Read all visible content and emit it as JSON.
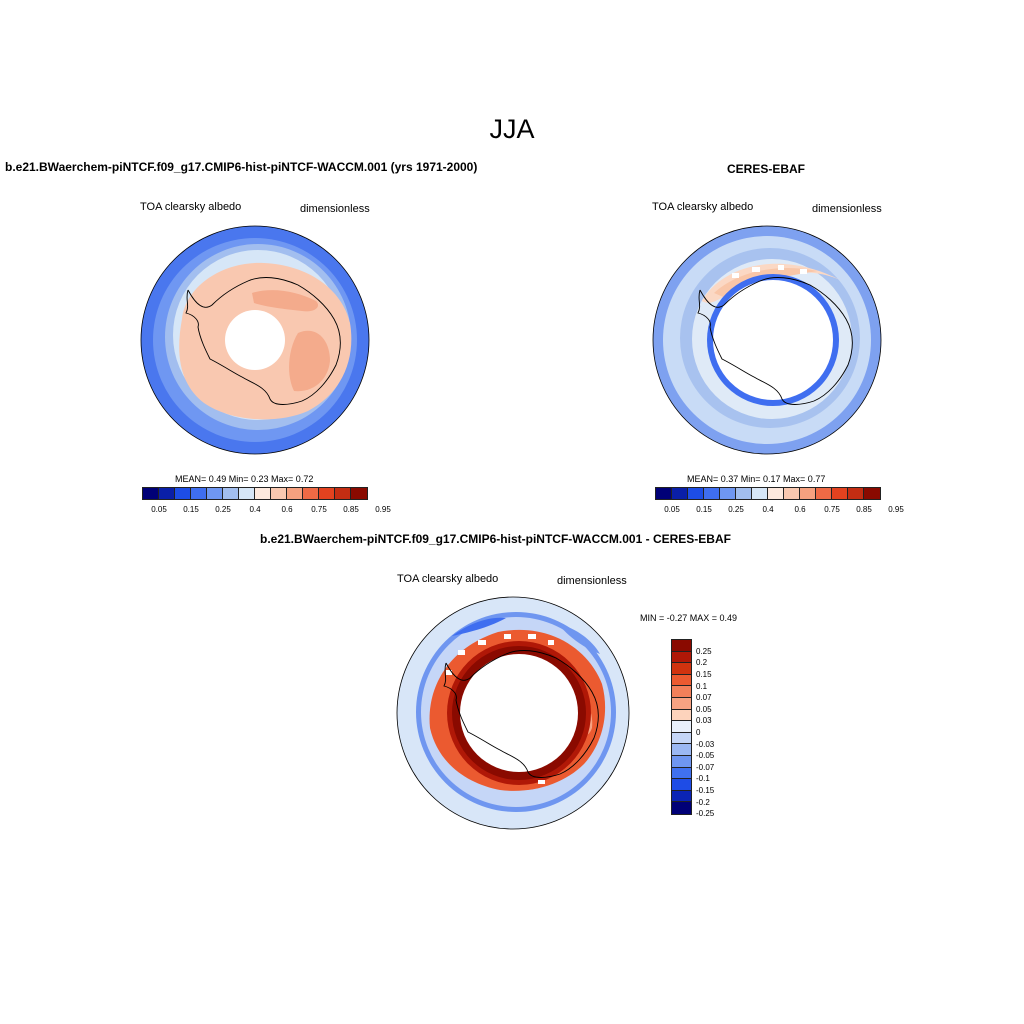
{
  "page": {
    "season": "JJA",
    "panels": [
      {
        "title": "b.e21.BWaerchem-piNTCF.f09_g17.CMIP6-hist-piNTCF-WACCM.001 (yrs 1971-2000)",
        "variable": "TOA clearsky albedo",
        "units": "dimensionless",
        "stats": {
          "mean": "0.49",
          "min": "0.23",
          "max": "0.72"
        },
        "stats_text": "MEAN=   0.49   Min=   0.23   Max=   0.72",
        "colorbar_labels": [
          "0.05",
          "0.15",
          "0.25",
          "0.4",
          "0.6",
          "0.75",
          "0.85",
          "0.95"
        ]
      },
      {
        "title": "CERES-EBAF",
        "variable": "TOA clearsky albedo",
        "units": "dimensionless",
        "stats": {
          "mean": "0.37",
          "min": "0.17",
          "max": "0.77"
        },
        "stats_text": "MEAN=   0.37   Min=   0.17   Max=   0.77",
        "colorbar_labels": [
          "0.05",
          "0.15",
          "0.25",
          "0.4",
          "0.6",
          "0.75",
          "0.85",
          "0.95"
        ]
      },
      {
        "title": "b.e21.BWaerchem-piNTCF.f09_g17.CMIP6-hist-piNTCF-WACCM.001 - CERES-EBAF",
        "variable": "TOA clearsky albedo",
        "units": "dimensionless",
        "stats": {
          "min": "-0.27",
          "max": "0.49"
        },
        "stats_text": "MIN =  -0.27 MAX =   0.49",
        "colorbar_labels": [
          "0.25",
          "0.2",
          "0.15",
          "0.1",
          "0.07",
          "0.05",
          "0.03",
          "0",
          "-0.03",
          "-0.05",
          "-0.07",
          "-0.1",
          "-0.15",
          "-0.2",
          "-0.25"
        ]
      }
    ]
  },
  "colors": {
    "abs_scale": [
      "#000077",
      "#0a1fa8",
      "#1d4de6",
      "#3f6ef0",
      "#6f97f2",
      "#a2beef",
      "#d6e6f7",
      "#fde9de",
      "#f9c8b0",
      "#f6a17f",
      "#ef6a45",
      "#e3421f",
      "#c42d12",
      "#8a0a00"
    ],
    "diff_scale": [
      "#8a0a00",
      "#b01807",
      "#d0330f",
      "#eb5a30",
      "#f2805a",
      "#f7a282",
      "#fdd3bc",
      "#e9f0fb",
      "#c5d6f7",
      "#9bb8f3",
      "#6f96f0",
      "#4071ef",
      "#1e4ce6",
      "#0b24b5",
      "#000077"
    ]
  }
}
